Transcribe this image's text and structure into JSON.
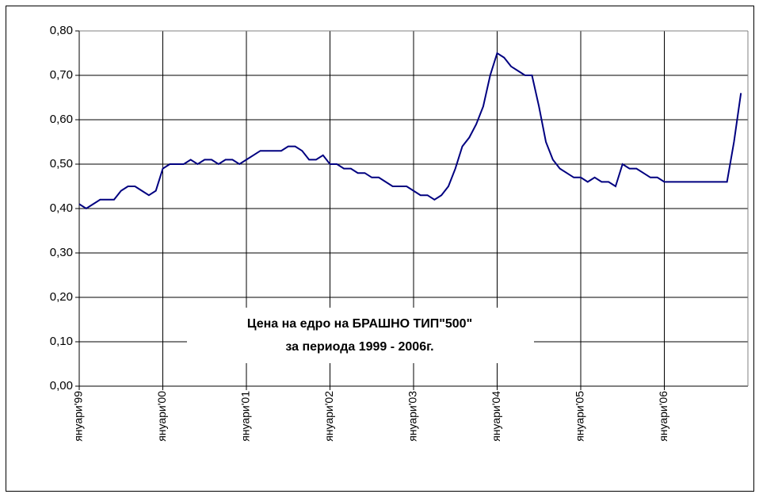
{
  "chart_data": {
    "type": "line",
    "title": "Цена на едро на БРАШНО ТИП\"500\"",
    "subtitle": "за периода 1999 - 2006г.",
    "categories": [
      "януари'99",
      null,
      null,
      null,
      null,
      null,
      null,
      null,
      null,
      null,
      null,
      null,
      "януари'00",
      null,
      null,
      null,
      null,
      null,
      null,
      null,
      null,
      null,
      null,
      null,
      "януари'01",
      null,
      null,
      null,
      null,
      null,
      null,
      null,
      null,
      null,
      null,
      null,
      "януари'02",
      null,
      null,
      null,
      null,
      null,
      null,
      null,
      null,
      null,
      null,
      null,
      "януари'03",
      null,
      null,
      null,
      null,
      null,
      null,
      null,
      null,
      null,
      null,
      null,
      "януари'04",
      null,
      null,
      null,
      null,
      null,
      null,
      null,
      null,
      null,
      null,
      null,
      "януари'05",
      null,
      null,
      null,
      null,
      null,
      null,
      null,
      null,
      null,
      null,
      null,
      "януари'06",
      null,
      null,
      null,
      null,
      null,
      null,
      null,
      null,
      null,
      null,
      null
    ],
    "series": [
      {
        "color": "#000080",
        "values": [
          0.41,
          0.4,
          0.41,
          0.42,
          0.42,
          0.42,
          0.44,
          0.45,
          0.45,
          0.44,
          0.43,
          0.44,
          0.49,
          0.5,
          0.5,
          0.5,
          0.51,
          0.5,
          0.51,
          0.51,
          0.5,
          0.51,
          0.51,
          0.5,
          0.51,
          0.52,
          0.53,
          0.53,
          0.53,
          0.53,
          0.54,
          0.54,
          0.53,
          0.51,
          0.51,
          0.52,
          0.5,
          0.5,
          0.49,
          0.49,
          0.48,
          0.48,
          0.47,
          0.47,
          0.46,
          0.45,
          0.45,
          0.45,
          0.44,
          0.43,
          0.43,
          0.42,
          0.43,
          0.45,
          0.49,
          0.54,
          0.56,
          0.59,
          0.63,
          0.7,
          0.75,
          0.74,
          0.72,
          0.71,
          0.7,
          0.7,
          0.63,
          0.55,
          0.51,
          0.49,
          0.48,
          0.47,
          0.47,
          0.46,
          0.47,
          0.46,
          0.46,
          0.45,
          0.5,
          0.49,
          0.49,
          0.48,
          0.47,
          0.47,
          0.46,
          0.46,
          0.46,
          0.46,
          0.46,
          0.46,
          0.46,
          0.46,
          0.46,
          0.46,
          0.55,
          0.66
        ]
      }
    ],
    "ylim": [
      0,
      0.8
    ],
    "yticks": [
      {
        "value": 0,
        "label": "0,00"
      },
      {
        "value": 0.1,
        "label": "0,10"
      },
      {
        "value": 0.2,
        "label": "0,20"
      },
      {
        "value": 0.3,
        "label": "0,30"
      },
      {
        "value": 0.4,
        "label": "0,40"
      },
      {
        "value": 0.5,
        "label": "0,50"
      },
      {
        "value": 0.6,
        "label": "0,60"
      },
      {
        "value": 0.7,
        "label": "0,70"
      },
      {
        "value": 0.8,
        "label": "0,80"
      }
    ],
    "grid": true
  }
}
